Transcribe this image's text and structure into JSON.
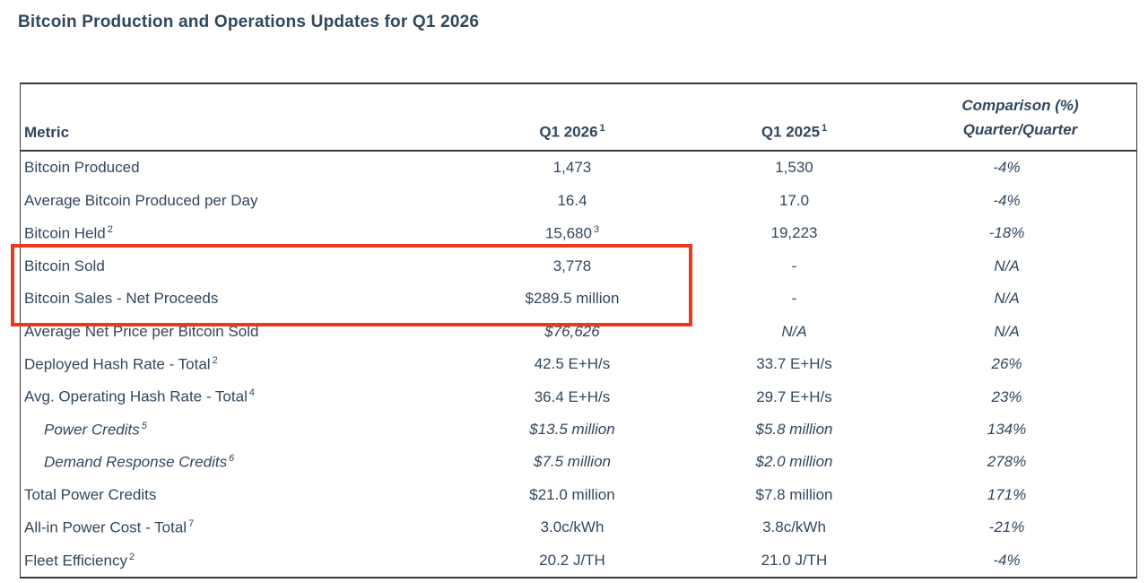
{
  "page_title": "Bitcoin Production and Operations Updates for Q1 2026",
  "colors": {
    "text": "#31475e",
    "table_border": "#3a3a3a",
    "highlight_red": "#e83a1e"
  },
  "table": {
    "header": {
      "metric": "Metric",
      "q1_2026": {
        "text": "Q1 2026",
        "sup": "1"
      },
      "q1_2025": {
        "text": "Q1 2025",
        "sup": "1"
      },
      "comparison_line1": "Comparison (%)",
      "comparison_line2": "Quarter/Quarter"
    },
    "rows": [
      {
        "metric": {
          "text": "Bitcoin Produced"
        },
        "q1_2026": {
          "text": "1,473"
        },
        "q1_2025": {
          "text": "1,530"
        },
        "comparison": {
          "text": "-4%"
        },
        "highlighted": false
      },
      {
        "metric": {
          "text": "Average Bitcoin Produced per Day"
        },
        "q1_2026": {
          "text": "16.4"
        },
        "q1_2025": {
          "text": "17.0"
        },
        "comparison": {
          "text": "-4%"
        },
        "highlighted": false
      },
      {
        "metric": {
          "text": "Bitcoin Held",
          "sup": "2"
        },
        "q1_2026": {
          "text": "15,680",
          "sup": "3"
        },
        "q1_2025": {
          "text": "19,223"
        },
        "comparison": {
          "text": "-18%"
        },
        "highlighted": false
      },
      {
        "metric": {
          "text": "Bitcoin Sold"
        },
        "q1_2026": {
          "text": "3,778"
        },
        "q1_2025": {
          "text": "-"
        },
        "comparison": {
          "text": "N/A"
        },
        "highlighted": true
      },
      {
        "metric": {
          "text": "Bitcoin Sales - Net Proceeds"
        },
        "q1_2026": {
          "text": "$289.5 million"
        },
        "q1_2025": {
          "text": "-"
        },
        "comparison": {
          "text": "N/A"
        },
        "highlighted": true
      },
      {
        "metric": {
          "text": "Average Net Price per Bitcoin Sold"
        },
        "q1_2026": {
          "text": "$76,626",
          "italic": true
        },
        "q1_2025": {
          "text": "N/A",
          "italic": true
        },
        "comparison": {
          "text": "N/A"
        },
        "highlighted": false
      },
      {
        "metric": {
          "text": "Deployed Hash Rate - Total",
          "sup": "2"
        },
        "q1_2026": {
          "text": "42.5 E+H/s"
        },
        "q1_2025": {
          "text": "33.7 E+H/s"
        },
        "comparison": {
          "text": "26%"
        },
        "highlighted": false
      },
      {
        "metric": {
          "text": "Avg. Operating Hash Rate - Total",
          "sup": "4"
        },
        "q1_2026": {
          "text": "36.4 E+H/s"
        },
        "q1_2025": {
          "text": "29.7 E+H/s"
        },
        "comparison": {
          "text": "23%"
        },
        "highlighted": false
      },
      {
        "metric": {
          "text": "Power Credits",
          "sup": "5",
          "italic": true,
          "indent": true
        },
        "q1_2026": {
          "text": "$13.5 million",
          "italic": true
        },
        "q1_2025": {
          "text": "$5.8 million",
          "italic": true
        },
        "comparison": {
          "text": "134%"
        },
        "highlighted": false
      },
      {
        "metric": {
          "text": "Demand Response Credits",
          "sup": "6",
          "italic": true,
          "indent": true
        },
        "q1_2026": {
          "text": "$7.5 million",
          "italic": true
        },
        "q1_2025": {
          "text": "$2.0 million",
          "italic": true
        },
        "comparison": {
          "text": "278%"
        },
        "highlighted": false
      },
      {
        "metric": {
          "text": "Total Power Credits"
        },
        "q1_2026": {
          "text": "$21.0 million"
        },
        "q1_2025": {
          "text": "$7.8 million"
        },
        "comparison": {
          "text": "171%"
        },
        "highlighted": false
      },
      {
        "metric": {
          "text": "All-in Power Cost - Total",
          "sup": "7"
        },
        "q1_2026": {
          "text": "3.0c/kWh"
        },
        "q1_2025": {
          "text": "3.8c/kWh"
        },
        "comparison": {
          "text": "-21%"
        },
        "highlighted": false
      },
      {
        "metric": {
          "text": "Fleet Efficiency",
          "sup": "2"
        },
        "q1_2026": {
          "text": "20.2 J/TH"
        },
        "q1_2025": {
          "text": "21.0 J/TH"
        },
        "comparison": {
          "text": "-4%"
        },
        "highlighted": false
      }
    ],
    "highlight_annotation": {
      "covers_rows": [
        "Bitcoin Sold",
        "Bitcoin Sales - Net Proceeds"
      ]
    }
  }
}
